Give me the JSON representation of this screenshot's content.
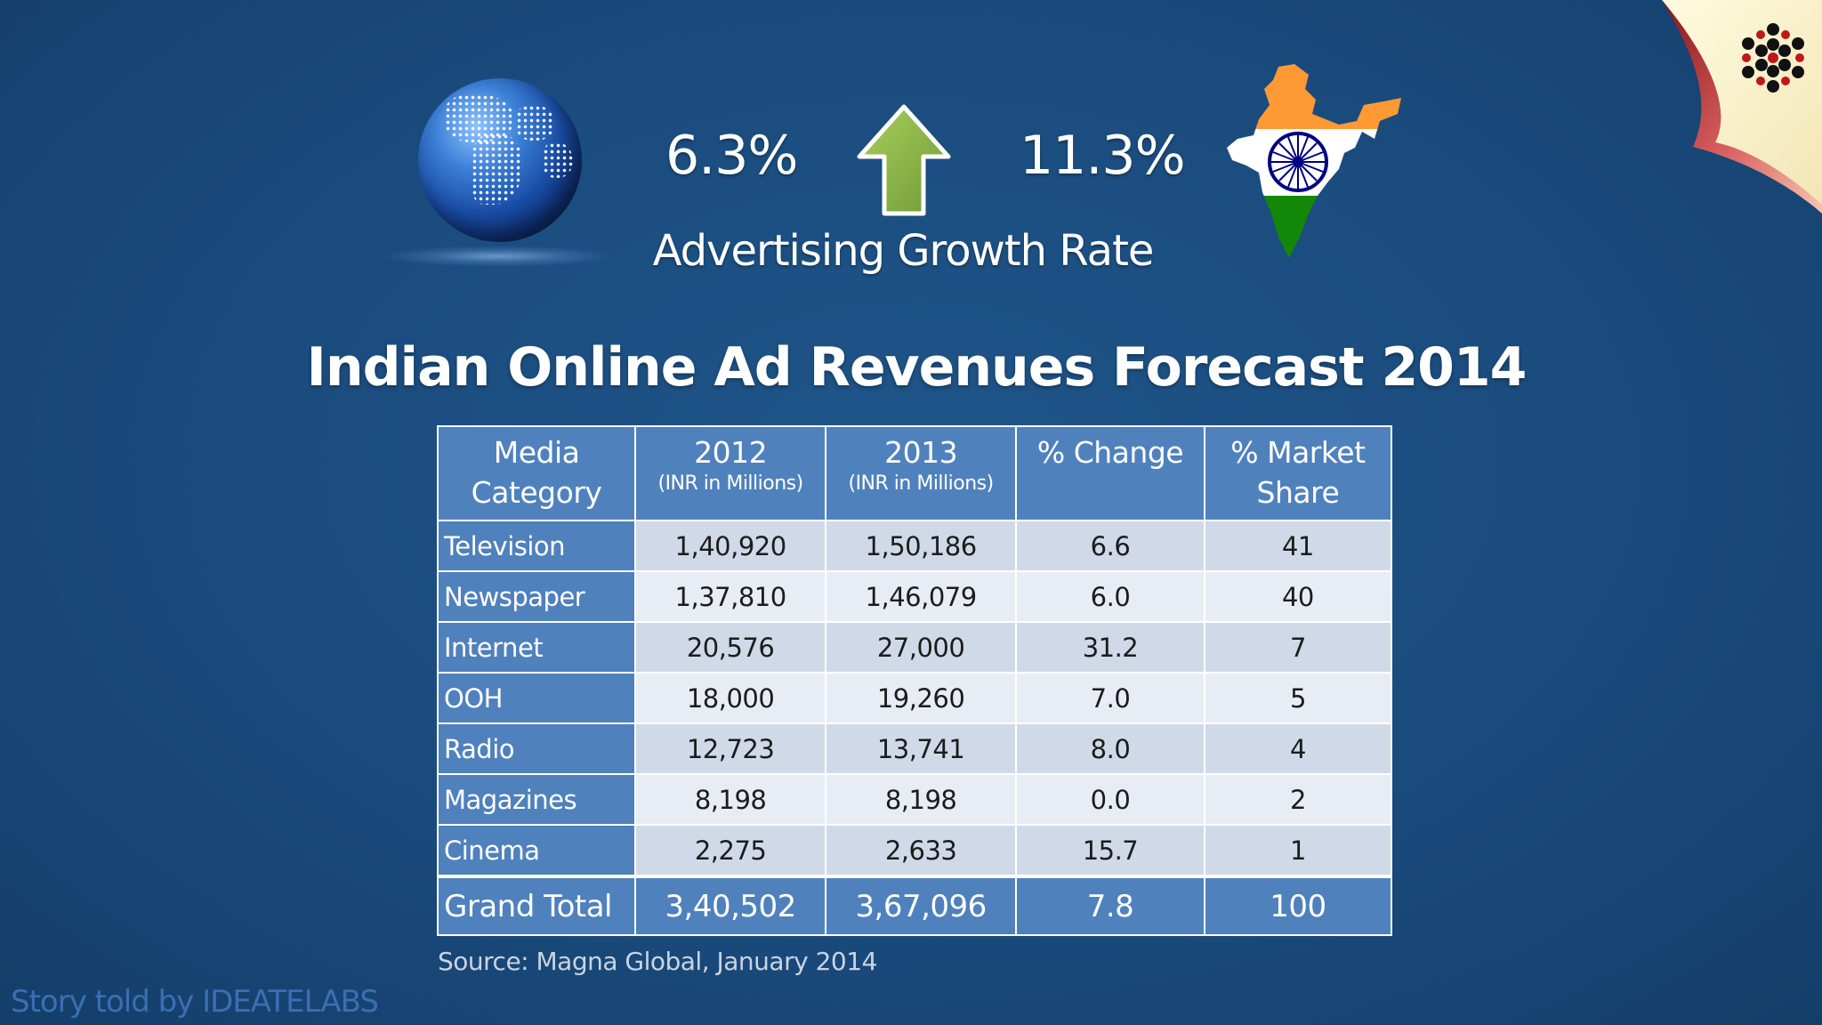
{
  "header": {
    "world_growth": "6.3%",
    "india_growth": "11.3%",
    "growth_label": "Advertising Growth Rate"
  },
  "icons": {
    "globe": "globe-icon",
    "arrow": "up-arrow-icon",
    "india_map": "india-map-icon",
    "logo": "ideatelabs-logo-icon"
  },
  "colors": {
    "background": "#1a4b7d",
    "table_header": "#4f81bd",
    "row_odd": "#cfd9e8",
    "row_even": "#e8edf5",
    "arrow": "#8db34a",
    "saffron": "#ff9933",
    "green": "#138808"
  },
  "chart_data": {
    "type": "table",
    "title": "Indian Online Ad Revenues Forecast 2014",
    "columns": [
      {
        "label": "Media Category",
        "line1": "Media",
        "line2": "Category",
        "sub": ""
      },
      {
        "label": "2012 (INR in Millions)",
        "line1": "2012",
        "line2": "",
        "sub": "(INR in Millions)"
      },
      {
        "label": "2013 (INR in Millions)",
        "line1": "2013",
        "line2": "",
        "sub": "(INR in Millions)"
      },
      {
        "label": "% Change",
        "line1": "% Change",
        "line2": "",
        "sub": ""
      },
      {
        "label": "% Market Share",
        "line1": "% Market",
        "line2": "Share",
        "sub": ""
      }
    ],
    "rows": [
      {
        "category": "Television",
        "y2012": "1,40,920",
        "y2013": "1,50,186",
        "change": "6.6",
        "share": "41"
      },
      {
        "category": "Newspaper",
        "y2012": "1,37,810",
        "y2013": "1,46,079",
        "change": "6.0",
        "share": "40"
      },
      {
        "category": "Internet",
        "y2012": "20,576",
        "y2013": "27,000",
        "change": "31.2",
        "share": "7"
      },
      {
        "category": "OOH",
        "y2012": "18,000",
        "y2013": "19,260",
        "change": "7.0",
        "share": "5"
      },
      {
        "category": "Radio",
        "y2012": "12,723",
        "y2013": "13,741",
        "change": "8.0",
        "share": "4"
      },
      {
        "category": "Magazines",
        "y2012": "8,198",
        "y2013": "8,198",
        "change": "0.0",
        "share": "2"
      },
      {
        "category": "Cinema",
        "y2012": "2,275",
        "y2013": "2,633",
        "change": "15.7",
        "share": "1"
      }
    ],
    "total": {
      "category": "Grand Total",
      "y2012": "3,40,502",
      "y2013": "3,67,096",
      "change": "7.8",
      "share": "100"
    },
    "source": "Source: Magna Global, January 2014"
  },
  "footer": {
    "credit": "Story told by IDEATELABS"
  }
}
